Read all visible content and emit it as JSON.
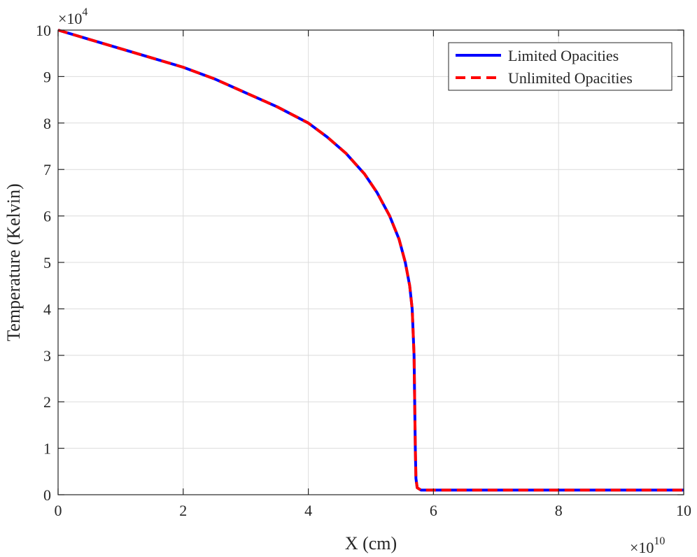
{
  "chart_data": {
    "type": "line",
    "title": "",
    "xlabel": "X (cm)",
    "ylabel": "Temperature (Kelvin)",
    "xlim": [
      0,
      10
    ],
    "ylim": [
      0,
      10
    ],
    "x_multiplier": "×10",
    "x_multiplier_exp": "10",
    "y_multiplier": "×10",
    "y_multiplier_exp": "4",
    "xticks": [
      0,
      2,
      4,
      6,
      8,
      10
    ],
    "yticks": [
      0,
      1,
      2,
      3,
      4,
      5,
      6,
      7,
      8,
      9,
      10
    ],
    "grid": true,
    "legend_position": "top-right",
    "series": [
      {
        "name": "Limited Opacities",
        "color": "#0000ff",
        "style": "solid",
        "x": [
          0,
          0.5,
          1,
          1.5,
          2,
          2.5,
          3,
          3.5,
          4,
          4.3,
          4.6,
          4.9,
          5.1,
          5.3,
          5.45,
          5.55,
          5.62,
          5.66,
          5.69,
          5.7,
          5.71,
          5.72,
          5.74,
          5.8,
          6,
          7,
          8,
          9,
          10
        ],
        "y": [
          10,
          9.8,
          9.6,
          9.4,
          9.2,
          8.95,
          8.65,
          8.35,
          8.0,
          7.7,
          7.35,
          6.9,
          6.5,
          6.0,
          5.5,
          5.0,
          4.5,
          4.0,
          3.0,
          2.0,
          1.0,
          0.35,
          0.15,
          0.1,
          0.1,
          0.1,
          0.1,
          0.1,
          0.1
        ]
      },
      {
        "name": "Unlimited Opacities",
        "color": "#ff0000",
        "style": "dashed",
        "x": [
          0,
          0.5,
          1,
          1.5,
          2,
          2.5,
          3,
          3.5,
          4,
          4.3,
          4.6,
          4.9,
          5.1,
          5.3,
          5.45,
          5.55,
          5.62,
          5.66,
          5.69,
          5.7,
          5.71,
          5.72,
          5.74,
          5.8,
          6,
          7,
          8,
          9,
          10
        ],
        "y": [
          10,
          9.8,
          9.6,
          9.4,
          9.2,
          8.95,
          8.65,
          8.35,
          8.0,
          7.7,
          7.35,
          6.9,
          6.5,
          6.0,
          5.5,
          5.0,
          4.5,
          4.0,
          3.0,
          2.0,
          1.0,
          0.35,
          0.15,
          0.1,
          0.1,
          0.1,
          0.1,
          0.1,
          0.1
        ]
      }
    ]
  }
}
